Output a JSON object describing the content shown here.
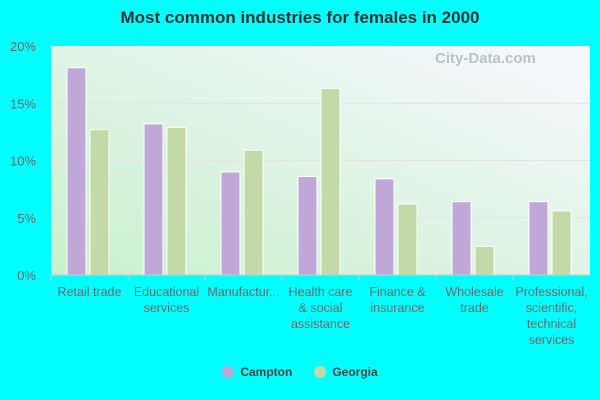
{
  "chart_data": {
    "type": "bar",
    "title": "Most common industries for females in 2000",
    "categories": [
      "Retail trade",
      "Educational services",
      "Manufactur...",
      "Health care & social assistance",
      "Finance & insurance",
      "Wholesale trade",
      "Professional, scientific, technical services"
    ],
    "category_lines": [
      [
        "Retail trade"
      ],
      [
        "Educational",
        "services"
      ],
      [
        "Manufactur..."
      ],
      [
        "Health care",
        "& social",
        "assistance"
      ],
      [
        "Finance &",
        "insurance"
      ],
      [
        "Wholesale",
        "trade"
      ],
      [
        "Professional,",
        "scientific,",
        "technical",
        "services"
      ]
    ],
    "series": [
      {
        "name": "Campton",
        "color": "#bfa8d8",
        "values": [
          18.1,
          13.2,
          9.0,
          8.6,
          8.4,
          6.4,
          6.4
        ]
      },
      {
        "name": "Georgia",
        "color": "#c4d9a8",
        "values": [
          12.7,
          12.9,
          10.9,
          16.3,
          6.2,
          2.5,
          5.6
        ]
      }
    ],
    "ylim": [
      0,
      20
    ],
    "yticks": [
      "0%",
      "5%",
      "10%",
      "15%",
      "20%"
    ],
    "grid": true,
    "legend": "bottom",
    "watermark": "City-Data.com"
  }
}
